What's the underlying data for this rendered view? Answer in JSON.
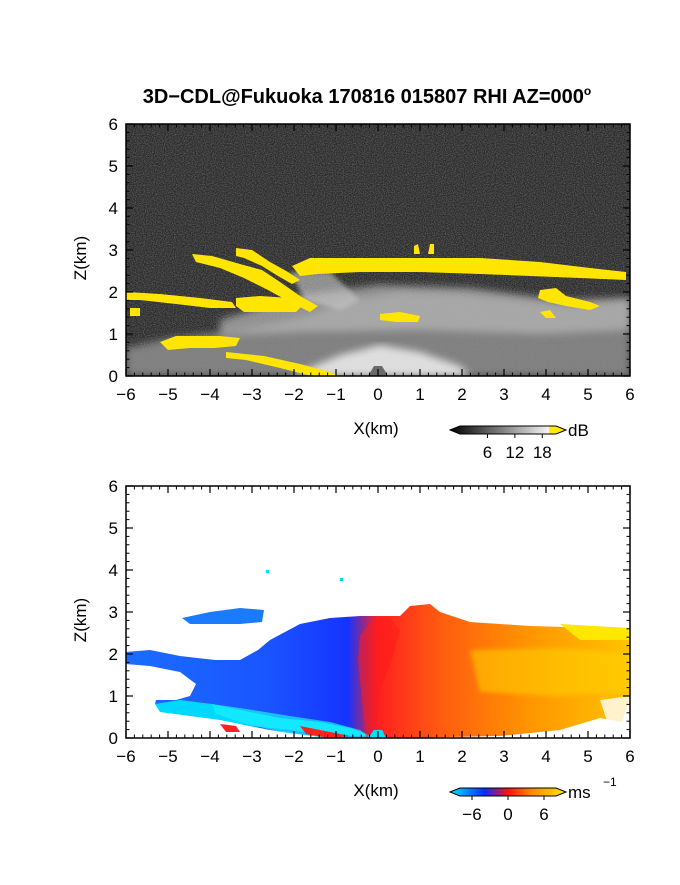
{
  "title": "3D−CDL@Fukuoka 170816 015807 RHI AZ=000",
  "title_sup": "o",
  "chart_data": [
    {
      "type": "heatmap",
      "panel": "top",
      "variable": "backscatter intensity",
      "xlabel": "X(km)",
      "ylabel": "Z(km)",
      "xlim": [
        -6,
        6
      ],
      "ylim": [
        0,
        6
      ],
      "xticks": [
        "−6",
        "−5",
        "−4",
        "−3",
        "−2",
        "−1",
        "0",
        "1",
        "2",
        "3",
        "4",
        "5",
        "6"
      ],
      "yticks": [
        "0",
        "1",
        "2",
        "3",
        "4",
        "5",
        "6"
      ],
      "colorbar": {
        "unit": "dB",
        "ticks": [
          "6",
          "12",
          "18"
        ],
        "tick_values": [
          6,
          12,
          18
        ],
        "range": [
          0,
          21
        ],
        "colors": [
          "#000000",
          "#ffffff",
          "#ffea00"
        ]
      },
      "cloud_layer_top_km": [
        {
          "x": -4.4,
          "z": 2.85
        },
        {
          "x": -2.0,
          "z": 2.55
        },
        {
          "x": 0.0,
          "z": 2.7
        },
        {
          "x": 2.0,
          "z": 2.7
        },
        {
          "x": 4.0,
          "z": 2.55
        },
        {
          "x": 6.0,
          "z": 2.4
        }
      ],
      "secondary_layers_km": [
        {
          "x0": -6.0,
          "x1": -2.5,
          "z": 1.9
        },
        {
          "x0": -4.8,
          "x1": -3.4,
          "z": 0.85
        },
        {
          "x0": 0.0,
          "x1": 1.1,
          "z": 1.5
        },
        {
          "x0": 3.9,
          "x1": 5.3,
          "z": 1.9
        }
      ]
    },
    {
      "type": "heatmap",
      "panel": "bottom",
      "variable": "radial velocity",
      "xlabel": "X(km)",
      "ylabel": "Z(km)",
      "xlim": [
        -6,
        6
      ],
      "ylim": [
        0,
        6
      ],
      "xticks": [
        "−6",
        "−5",
        "−4",
        "−3",
        "−2",
        "−1",
        "0",
        "1",
        "2",
        "3",
        "4",
        "5",
        "6"
      ],
      "yticks": [
        "0",
        "1",
        "2",
        "3",
        "4",
        "5",
        "6"
      ],
      "colorbar": {
        "unit": "ms",
        "unit_sup": "−1",
        "ticks": [
          "−6",
          "0",
          "6"
        ],
        "tick_values": [
          -6,
          0,
          6
        ],
        "range": [
          -8,
          8
        ],
        "colors": [
          "#00e5ff",
          "#0a2aff",
          "#ff1010",
          "#ff8800",
          "#ffe800"
        ]
      },
      "velocity_profile_ms": [
        {
          "x": -5.5,
          "v": -5
        },
        {
          "x": -4.0,
          "v": -5.5
        },
        {
          "x": -2.0,
          "v": -4
        },
        {
          "x": -0.5,
          "v": -2
        },
        {
          "x": 0.2,
          "v": 1.5
        },
        {
          "x": 1.5,
          "v": 3
        },
        {
          "x": 3.0,
          "v": 4
        },
        {
          "x": 5.0,
          "v": 5.5
        }
      ]
    }
  ]
}
